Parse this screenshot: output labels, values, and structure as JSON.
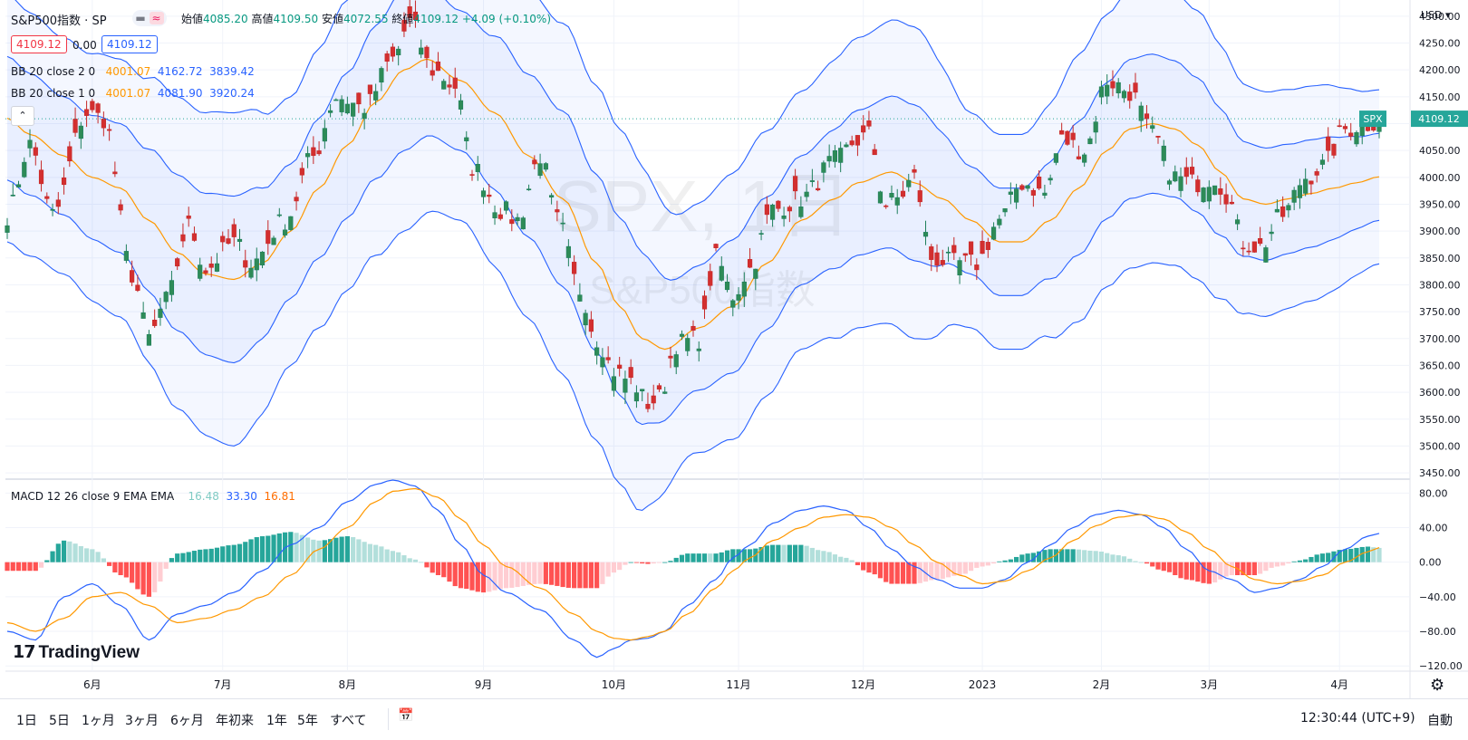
{
  "header": {
    "symbol": "S&P500指数 · SP",
    "open_label": "始値",
    "open": "4085.20",
    "high_label": "高値",
    "high": "4109.50",
    "low_label": "安値",
    "low": "4072.55",
    "close_label": "終値",
    "close": "4109.12",
    "change": "+4.09 (+0.10%)",
    "sell_price": "4109.12",
    "spread": "0.00",
    "buy_price": "4109.12"
  },
  "indicators": {
    "bb2_label": "BB 20 close 2 0",
    "bb2_basis": "4001.07",
    "bb2_upper": "4162.72",
    "bb2_lower": "3839.42",
    "bb1_label": "BB 20 close 1 0",
    "bb1_basis": "4001.07",
    "bb1_upper": "4081.90",
    "bb1_lower": "3920.24",
    "macd_label": "MACD 12 26 close 9 EMA EMA",
    "macd_hist": "16.48",
    "macd_line": "33.30",
    "macd_signal": "16.81"
  },
  "watermark": {
    "symbol": "SPX, 1日",
    "name": "S&P500指数"
  },
  "price_tag": {
    "label": "SPX",
    "value": "4109.12"
  },
  "currency": "USD",
  "colors": {
    "up": "#26a69a",
    "up_dark": "#1e7f5c",
    "down": "#ef5350",
    "down_dark": "#c62828",
    "bb_line": "#2962ff",
    "basis": "#ff9800",
    "macd": "#2962ff",
    "signal": "#ff9800",
    "hist_up": "#26a69a",
    "hist_up_light": "#b2dfdb",
    "hist_down": "#ff5252",
    "hist_down_light": "#ffcdd2"
  },
  "chart_data": {
    "type": "candlestick",
    "price_axis": {
      "ticks": [
        3450,
        3500,
        3550,
        3600,
        3650,
        3700,
        3750,
        3800,
        3850,
        3900,
        3950,
        4000,
        4050,
        4100,
        4150,
        4200,
        4250,
        4300
      ],
      "tick_labels": [
        "3450.00",
        "3500.00",
        "3550.00",
        "3600.00",
        "3650.00",
        "3700.00",
        "3750.00",
        "3800.00",
        "3850.00",
        "3900.00",
        "3950.00",
        "4000.00",
        "4050.00",
        "4100.00",
        "4150.00",
        "4200.00",
        "4250.00",
        "4300.00"
      ],
      "range": [
        3440,
        4320
      ]
    },
    "macd_axis": {
      "ticks": [
        80,
        40,
        0,
        -40,
        -80,
        -120
      ],
      "tick_labels": [
        "80.00",
        "40.00",
        "0.00",
        "−40.00",
        "−80.00",
        "−120.00"
      ],
      "range": [
        -125,
        95
      ]
    },
    "time_axis": [
      {
        "label": "6月",
        "index": 15
      },
      {
        "label": "7月",
        "index": 38
      },
      {
        "label": "8月",
        "index": 60
      },
      {
        "label": "9月",
        "index": 84
      },
      {
        "label": "10月",
        "index": 107
      },
      {
        "label": "11月",
        "index": 129
      },
      {
        "label": "12月",
        "index": 151
      },
      {
        "label": "2023",
        "index": 172
      },
      {
        "label": "2月",
        "index": 193
      },
      {
        "label": "3月",
        "index": 212
      },
      {
        "label": "4月",
        "index": 235
      }
    ],
    "series_count": 243,
    "anchors": {
      "close": [
        [
          0,
          3930
        ],
        [
          4,
          4060
        ],
        [
          8,
          3930
        ],
        [
          14,
          4120
        ],
        [
          17,
          4110
        ],
        [
          22,
          3820
        ],
        [
          25,
          3700
        ],
        [
          28,
          3770
        ],
        [
          32,
          3910
        ],
        [
          35,
          3830
        ],
        [
          40,
          3880
        ],
        [
          43,
          3840
        ],
        [
          49,
          3920
        ],
        [
          54,
          4040
        ],
        [
          58,
          4150
        ],
        [
          63,
          4130
        ],
        [
          68,
          4220
        ],
        [
          71,
          4290
        ],
        [
          75,
          4200
        ],
        [
          79,
          4170
        ],
        [
          82,
          4020
        ],
        [
          87,
          3940
        ],
        [
          90,
          3920
        ],
        [
          94,
          4040
        ],
        [
          97,
          3920
        ],
        [
          101,
          3790
        ],
        [
          104,
          3700
        ],
        [
          107,
          3640
        ],
        [
          110,
          3620
        ],
        [
          113,
          3580
        ],
        [
          115,
          3590
        ],
        [
          118,
          3690
        ],
        [
          122,
          3700
        ],
        [
          125,
          3850
        ],
        [
          128,
          3780
        ],
        [
          131,
          3830
        ],
        [
          135,
          3940
        ],
        [
          140,
          3960
        ],
        [
          146,
          4030
        ],
        [
          150,
          4070
        ],
        [
          152,
          4080
        ],
        [
          155,
          3950
        ],
        [
          157,
          3960
        ],
        [
          160,
          4000
        ],
        [
          163,
          3850
        ],
        [
          167,
          3840
        ],
        [
          171,
          3840
        ],
        [
          175,
          3920
        ],
        [
          179,
          3990
        ],
        [
          183,
          3970
        ],
        [
          186,
          4070
        ],
        [
          190,
          4050
        ],
        [
          194,
          4180
        ],
        [
          198,
          4160
        ],
        [
          202,
          4080
        ],
        [
          206,
          4000
        ],
        [
          209,
          3990
        ],
        [
          213,
          4000
        ],
        [
          215,
          3970
        ],
        [
          218,
          3880
        ],
        [
          221,
          3870
        ],
        [
          225,
          3930
        ],
        [
          229,
          4000
        ],
        [
          232,
          4020
        ],
        [
          236,
          4090
        ],
        [
          240,
          4100
        ],
        [
          242,
          4109
        ]
      ],
      "bb_basis": [
        [
          0,
          4110
        ],
        [
          4,
          4080
        ],
        [
          10,
          4040
        ],
        [
          15,
          4000
        ],
        [
          20,
          3980
        ],
        [
          25,
          3920
        ],
        [
          30,
          3860
        ],
        [
          35,
          3820
        ],
        [
          40,
          3810
        ],
        [
          45,
          3840
        ],
        [
          50,
          3900
        ],
        [
          55,
          3980
        ],
        [
          60,
          4060
        ],
        [
          65,
          4140
        ],
        [
          70,
          4200
        ],
        [
          74,
          4220
        ],
        [
          80,
          4180
        ],
        [
          86,
          4120
        ],
        [
          92,
          4040
        ],
        [
          98,
          3960
        ],
        [
          104,
          3840
        ],
        [
          108,
          3760
        ],
        [
          112,
          3700
        ],
        [
          116,
          3680
        ],
        [
          122,
          3720
        ],
        [
          128,
          3760
        ],
        [
          134,
          3840
        ],
        [
          140,
          3920
        ],
        [
          146,
          3960
        ],
        [
          150,
          3990
        ],
        [
          156,
          4010
        ],
        [
          160,
          3990
        ],
        [
          165,
          3960
        ],
        [
          170,
          3920
        ],
        [
          175,
          3880
        ],
        [
          179,
          3880
        ],
        [
          184,
          3920
        ],
        [
          189,
          3980
        ],
        [
          194,
          4050
        ],
        [
          198,
          4090
        ],
        [
          202,
          4100
        ],
        [
          206,
          4090
        ],
        [
          210,
          4060
        ],
        [
          214,
          4010
        ],
        [
          218,
          3960
        ],
        [
          222,
          3950
        ],
        [
          226,
          3960
        ],
        [
          230,
          3970
        ],
        [
          234,
          3980
        ],
        [
          238,
          3990
        ],
        [
          242,
          4001
        ]
      ],
      "bb_width": [
        [
          0,
          230
        ],
        [
          10,
          220
        ],
        [
          20,
          240
        ],
        [
          30,
          290
        ],
        [
          40,
          310
        ],
        [
          50,
          250
        ],
        [
          60,
          270
        ],
        [
          70,
          300
        ],
        [
          80,
          260
        ],
        [
          90,
          300
        ],
        [
          100,
          330
        ],
        [
          110,
          330
        ],
        [
          120,
          230
        ],
        [
          130,
          250
        ],
        [
          140,
          240
        ],
        [
          150,
          270
        ],
        [
          160,
          290
        ],
        [
          170,
          200
        ],
        [
          180,
          200
        ],
        [
          190,
          250
        ],
        [
          200,
          260
        ],
        [
          210,
          250
        ],
        [
          220,
          210
        ],
        [
          230,
          200
        ],
        [
          242,
          162
        ]
      ],
      "macd": [
        [
          0,
          -80
        ],
        [
          5,
          -90
        ],
        [
          10,
          -40
        ],
        [
          15,
          -25
        ],
        [
          20,
          -50
        ],
        [
          25,
          -90
        ],
        [
          30,
          -60
        ],
        [
          35,
          -50
        ],
        [
          40,
          -35
        ],
        [
          45,
          -10
        ],
        [
          50,
          20
        ],
        [
          55,
          40
        ],
        [
          60,
          70
        ],
        [
          65,
          90
        ],
        [
          68,
          95
        ],
        [
          72,
          88
        ],
        [
          76,
          60
        ],
        [
          80,
          20
        ],
        [
          84,
          -15
        ],
        [
          88,
          -35
        ],
        [
          94,
          -55
        ],
        [
          100,
          -90
        ],
        [
          104,
          -110
        ],
        [
          107,
          -100
        ],
        [
          110,
          -90
        ],
        [
          113,
          -88
        ],
        [
          116,
          -80
        ],
        [
          120,
          -50
        ],
        [
          125,
          -20
        ],
        [
          128,
          5
        ],
        [
          131,
          20
        ],
        [
          135,
          45
        ],
        [
          140,
          60
        ],
        [
          144,
          65
        ],
        [
          148,
          60
        ],
        [
          152,
          40
        ],
        [
          156,
          15
        ],
        [
          160,
          -5
        ],
        [
          164,
          -20
        ],
        [
          168,
          -30
        ],
        [
          172,
          -30
        ],
        [
          176,
          -20
        ],
        [
          180,
          0
        ],
        [
          184,
          20
        ],
        [
          188,
          40
        ],
        [
          192,
          55
        ],
        [
          196,
          60
        ],
        [
          200,
          55
        ],
        [
          204,
          40
        ],
        [
          208,
          15
        ],
        [
          212,
          -10
        ],
        [
          216,
          -20
        ],
        [
          220,
          -35
        ],
        [
          224,
          -30
        ],
        [
          228,
          -20
        ],
        [
          232,
          -5
        ],
        [
          236,
          15
        ],
        [
          240,
          30
        ],
        [
          242,
          33.3
        ]
      ],
      "signal": [
        [
          0,
          -70
        ],
        [
          5,
          -80
        ],
        [
          10,
          -65
        ],
        [
          15,
          -40
        ],
        [
          20,
          -35
        ],
        [
          25,
          -50
        ],
        [
          30,
          -70
        ],
        [
          35,
          -65
        ],
        [
          40,
          -55
        ],
        [
          45,
          -40
        ],
        [
          50,
          -15
        ],
        [
          55,
          15
        ],
        [
          60,
          40
        ],
        [
          65,
          70
        ],
        [
          68,
          82
        ],
        [
          72,
          85
        ],
        [
          76,
          75
        ],
        [
          80,
          50
        ],
        [
          84,
          20
        ],
        [
          88,
          -5
        ],
        [
          94,
          -30
        ],
        [
          100,
          -60
        ],
        [
          104,
          -80
        ],
        [
          107,
          -88
        ],
        [
          110,
          -90
        ],
        [
          113,
          -86
        ],
        [
          116,
          -80
        ],
        [
          120,
          -60
        ],
        [
          125,
          -30
        ],
        [
          128,
          -10
        ],
        [
          131,
          5
        ],
        [
          135,
          25
        ],
        [
          140,
          40
        ],
        [
          144,
          52
        ],
        [
          148,
          55
        ],
        [
          152,
          52
        ],
        [
          156,
          40
        ],
        [
          160,
          20
        ],
        [
          164,
          0
        ],
        [
          168,
          -15
        ],
        [
          172,
          -25
        ],
        [
          176,
          -22
        ],
        [
          180,
          -10
        ],
        [
          184,
          5
        ],
        [
          188,
          25
        ],
        [
          192,
          42
        ],
        [
          196,
          52
        ],
        [
          200,
          55
        ],
        [
          204,
          50
        ],
        [
          208,
          35
        ],
        [
          212,
          15
        ],
        [
          216,
          -5
        ],
        [
          220,
          -20
        ],
        [
          224,
          -25
        ],
        [
          228,
          -22
        ],
        [
          232,
          -15
        ],
        [
          236,
          0
        ],
        [
          240,
          12
        ],
        [
          242,
          16.81
        ]
      ]
    },
    "last": {
      "open": 4085.2,
      "high": 4109.5,
      "low": 4072.55,
      "close": 4109.12
    }
  },
  "toolbar": {
    "ranges": [
      "1日",
      "5日",
      "1ヶ月",
      "3ヶ月",
      "6ヶ月",
      "年初来",
      "1年",
      "5年",
      "すべて"
    ],
    "time": "12:30:44 (UTC+9)",
    "auto": "自動"
  },
  "logo": {
    "text": "TradingView"
  }
}
